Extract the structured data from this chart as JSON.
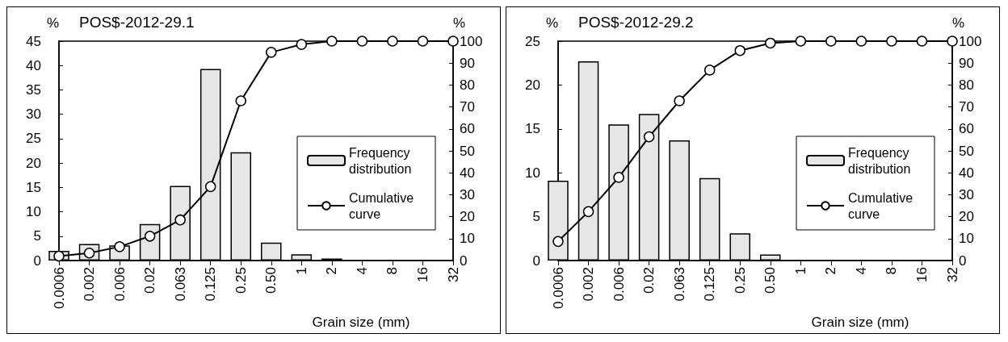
{
  "chart_data": [
    {
      "type": "bar",
      "title": "POS$-2012-29.1",
      "xlabel": "Grain size (mm)",
      "ylabel": "%",
      "y2label": "%",
      "categories": [
        "0.0006",
        "0.002",
        "0.006",
        "0.02",
        "0.063",
        "0.125",
        "0.25",
        "0.50",
        "1",
        "2",
        "4",
        "8",
        "16",
        "32"
      ],
      "series": [
        {
          "name": "Frequency distribution",
          "color": "#e6e6e6",
          "values": [
            2.0,
            3.4,
            3.1,
            7.5,
            15.3,
            39.3,
            22.2,
            3.7,
            1.3,
            0.4,
            null,
            null,
            null,
            null
          ]
        },
        {
          "name": "Cumulative curve",
          "type": "line",
          "axis": "y2",
          "color": "#000000",
          "values": [
            2.0,
            3.4,
            6.3,
            11.1,
            18.5,
            33.7,
            72.8,
            94.9,
            98.5,
            100,
            100,
            100,
            100,
            100
          ]
        }
      ],
      "ylim": [
        0,
        45
      ],
      "yticks": [
        0,
        5,
        10,
        15,
        20,
        25,
        30,
        35,
        40,
        45
      ],
      "y2lim": [
        0,
        100
      ],
      "y2ticks": [
        0,
        10,
        20,
        30,
        40,
        50,
        60,
        70,
        80,
        90,
        100
      ],
      "marker": "circle",
      "legend": "right"
    },
    {
      "type": "bar",
      "title": "POS$-2012-29.2",
      "xlabel": "Grain size (mm)",
      "ylabel": "%",
      "y2label": "%",
      "categories": [
        "0.0006",
        "0.002",
        "0.006",
        "0.02",
        "0.063",
        "0.125",
        "0.25",
        "0.50",
        "1",
        "2",
        "4",
        "8",
        "16",
        "32"
      ],
      "series": [
        {
          "name": "Frequency distribution",
          "color": "#e6e6e6",
          "values": [
            9.1,
            22.7,
            15.5,
            16.7,
            13.7,
            9.4,
            3.1,
            0.7,
            null,
            null,
            null,
            null,
            null,
            null
          ]
        },
        {
          "name": "Cumulative curve",
          "type": "line",
          "axis": "y2",
          "color": "#000000",
          "values": [
            8.7,
            22.3,
            37.9,
            56.4,
            72.8,
            86.8,
            95.7,
            99.1,
            100,
            100,
            100,
            100,
            100,
            100
          ]
        }
      ],
      "ylim": [
        0,
        25
      ],
      "yticks": [
        0,
        5,
        10,
        15,
        20,
        25
      ],
      "y2lim": [
        0,
        100
      ],
      "y2ticks": [
        0,
        10,
        20,
        30,
        40,
        50,
        60,
        70,
        80,
        90,
        100
      ],
      "marker": "circle",
      "legend": "right"
    }
  ]
}
